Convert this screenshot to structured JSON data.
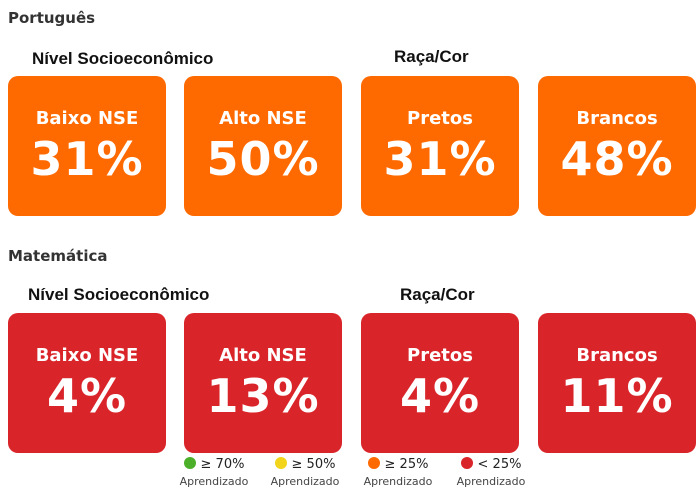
{
  "colors": {
    "portugues_card": "#ff6a00",
    "matematica_card": "#d9242a",
    "legend_green": "#4caf2a",
    "legend_yellow": "#f2d51b",
    "legend_orange": "#ff6a00",
    "legend_red": "#d9242a"
  },
  "portugues": {
    "title": "Português",
    "group_nse": "Nível Socioeconômico",
    "group_raca": "Raça/Cor",
    "cards": [
      {
        "label": "Baixo NSE",
        "value": "31%"
      },
      {
        "label": "Alto NSE",
        "value": "50%"
      },
      {
        "label": "Pretos",
        "value": "31%"
      },
      {
        "label": "Brancos",
        "value": "48%"
      }
    ]
  },
  "matematica": {
    "title": "Matemática",
    "group_nse": "Nível Socioeconômico",
    "group_raca": "Raça/Cor",
    "cards": [
      {
        "label": "Baixo NSE",
        "value": "4%"
      },
      {
        "label": "Alto NSE",
        "value": "13%"
      },
      {
        "label": "Pretos",
        "value": "4%"
      },
      {
        "label": "Brancos",
        "value": "11%"
      }
    ]
  },
  "legend": [
    {
      "threshold": "≥ 70%",
      "caption": "Aprendizado",
      "color_name": "green"
    },
    {
      "threshold": "≥ 50%",
      "caption": "Aprendizado",
      "color_name": "yellow"
    },
    {
      "threshold": "≥ 25%",
      "caption": "Aprendizado",
      "color_name": "orange"
    },
    {
      "threshold": "< 25%",
      "caption": "Aprendizado",
      "color_name": "red"
    }
  ]
}
